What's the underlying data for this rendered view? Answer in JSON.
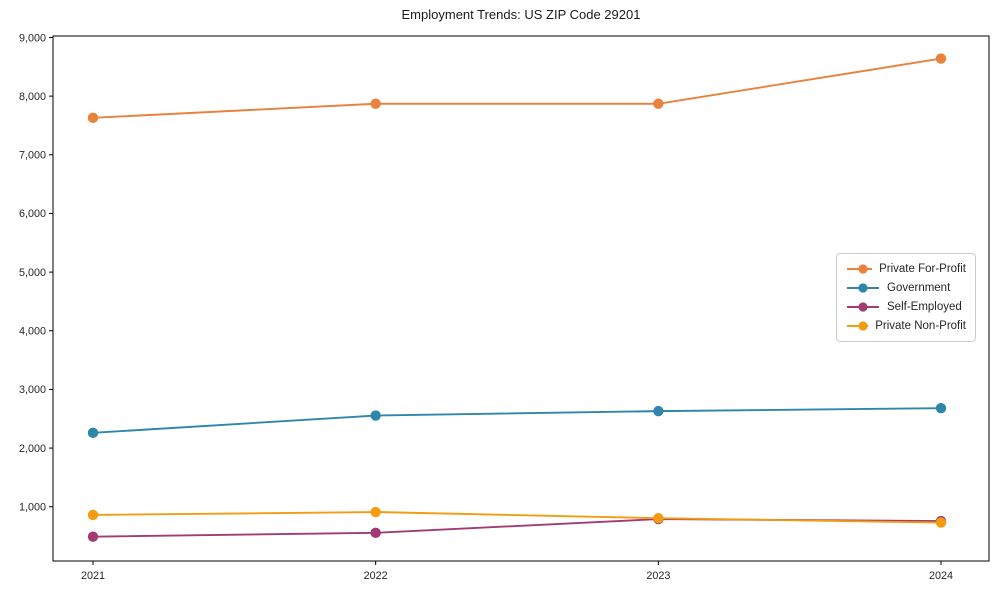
{
  "page": {
    "title": "Employment Trends: US ZIP Code 29201"
  },
  "chart_data": {
    "type": "line",
    "title": "Employment Trends: US ZIP Code 29201",
    "x_label": "",
    "y_label": "",
    "categories": [
      "2021",
      "2022",
      "2023",
      "2024"
    ],
    "y_ticks": [
      1000,
      2000,
      3000,
      4000,
      5000,
      6000,
      7000,
      8000,
      9000
    ],
    "y_tick_labels": [
      "1,000",
      "2,000",
      "3,000",
      "4,000",
      "5,000",
      "6,000",
      "7,000",
      "8,000",
      "9,000"
    ],
    "ylim": [
      75,
      9025
    ],
    "grid": false,
    "legend_position": "center right",
    "marker": "circle",
    "series": [
      {
        "name": "Private For-Profit",
        "color": "#E8823D",
        "values": [
          7630,
          7870,
          7870,
          8640
        ]
      },
      {
        "name": "Government",
        "color": "#2E86AB",
        "values": [
          2260,
          2555,
          2630,
          2680
        ]
      },
      {
        "name": "Self-Employed",
        "color": "#A23B72",
        "values": [
          490,
          555,
          790,
          755
        ]
      },
      {
        "name": "Private Non-Profit",
        "color": "#F39C12",
        "values": [
          860,
          910,
          805,
          730
        ]
      }
    ]
  }
}
